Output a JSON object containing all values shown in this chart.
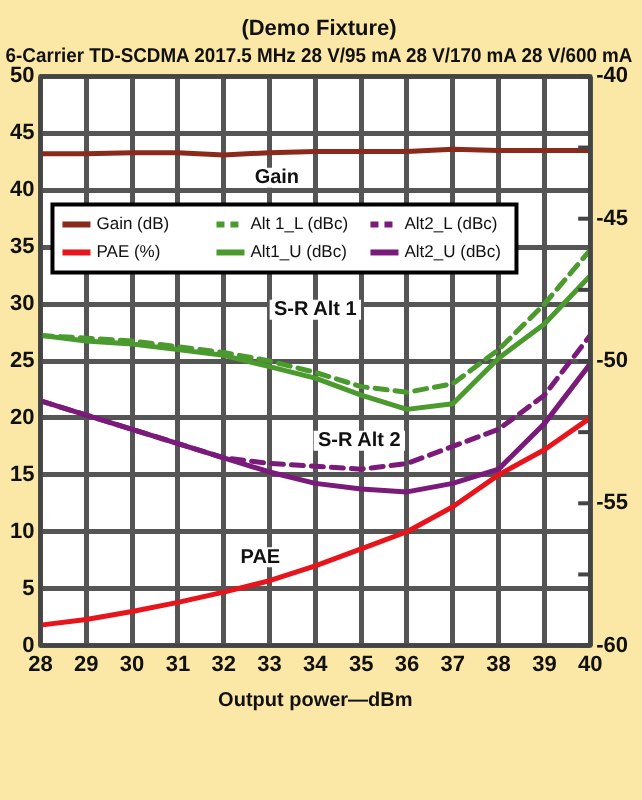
{
  "chart_data": {
    "type": "line",
    "title": "(Demo Fixture)",
    "subtitle": "6-Carrier TD-SCDMA 2017.5 MHz 28 V/95 mA 28 V/170 mA 28 V/600 mA",
    "xlabel": "Output power—dBm",
    "x": [
      28,
      29,
      30,
      31,
      32,
      33,
      34,
      35,
      36,
      37,
      38,
      39,
      40
    ],
    "series": [
      {
        "name": "Gain (dB)",
        "color": "#8b2a1a",
        "line_style": "solid",
        "values": [
          43.2,
          43.2,
          43.3,
          43.3,
          43.1,
          43.3,
          43.4,
          43.4,
          43.4,
          43.6,
          43.5,
          43.5,
          43.5
        ]
      },
      {
        "name": "PAE (%)",
        "color": "#e8141c",
        "line_style": "solid",
        "values": [
          1.8,
          2.3,
          3.0,
          3.8,
          4.7,
          5.7,
          7.0,
          8.5,
          10.0,
          12.2,
          15.0,
          17.2,
          20.0
        ]
      },
      {
        "name": "Alt 1_L (dBc)",
        "color": "#4a9a2e",
        "line_style": "dashed",
        "axis": "y2",
        "values": [
          -49.1,
          -49.2,
          -49.3,
          -49.5,
          -49.7,
          -50.0,
          -50.4,
          -50.9,
          -51.1,
          -50.8,
          -49.6,
          -48.0,
          -46.1
        ]
      },
      {
        "name": "Alt1_U (dBc)",
        "color": "#4a9a2e",
        "line_style": "solid",
        "axis": "y2",
        "values": [
          -49.1,
          -49.3,
          -49.4,
          -49.6,
          -49.8,
          -50.2,
          -50.6,
          -51.2,
          -51.7,
          -51.5,
          -49.9,
          -48.7,
          -47.0
        ]
      },
      {
        "name": "Alt2_L (dBc)",
        "color": "#7a1a7a",
        "line_style": "dashed",
        "axis": "y2",
        "values": [
          -51.4,
          -51.9,
          -52.4,
          -52.9,
          -53.4,
          -53.6,
          -53.7,
          -53.8,
          -53.6,
          -53.0,
          -52.4,
          -51.2,
          -49.1
        ]
      },
      {
        "name": "Alt2_U (dBc)",
        "color": "#7a1a7a",
        "line_style": "solid",
        "axis": "y2",
        "values": [
          -51.4,
          -51.9,
          -52.4,
          -52.9,
          -53.4,
          -53.9,
          -54.3,
          -54.5,
          -54.6,
          -54.3,
          -53.8,
          -52.2,
          -50.1
        ]
      }
    ],
    "xlim": [
      28,
      40
    ],
    "xticks": [
      28,
      29,
      30,
      31,
      32,
      33,
      34,
      35,
      36,
      37,
      38,
      39,
      40
    ],
    "ylim": [
      0,
      50
    ],
    "yticks": [
      0,
      5,
      10,
      15,
      20,
      25,
      30,
      35,
      40,
      45,
      50
    ],
    "y2lim": [
      -60,
      -40
    ],
    "y2ticks": [
      -60,
      {
        "value": -57.5,
        "label": null
      },
      -55,
      {
        "value": -52.5,
        "label": null
      },
      -50,
      {
        "value": -47.5,
        "label": null
      },
      -45,
      {
        "value": -42.5,
        "label": null
      },
      -40
    ],
    "grid": true,
    "legend": "top",
    "marker": "none",
    "annotations": [
      "Gain",
      "S-R Alt 1",
      "S-R Alt 2",
      "PAE"
    ]
  }
}
